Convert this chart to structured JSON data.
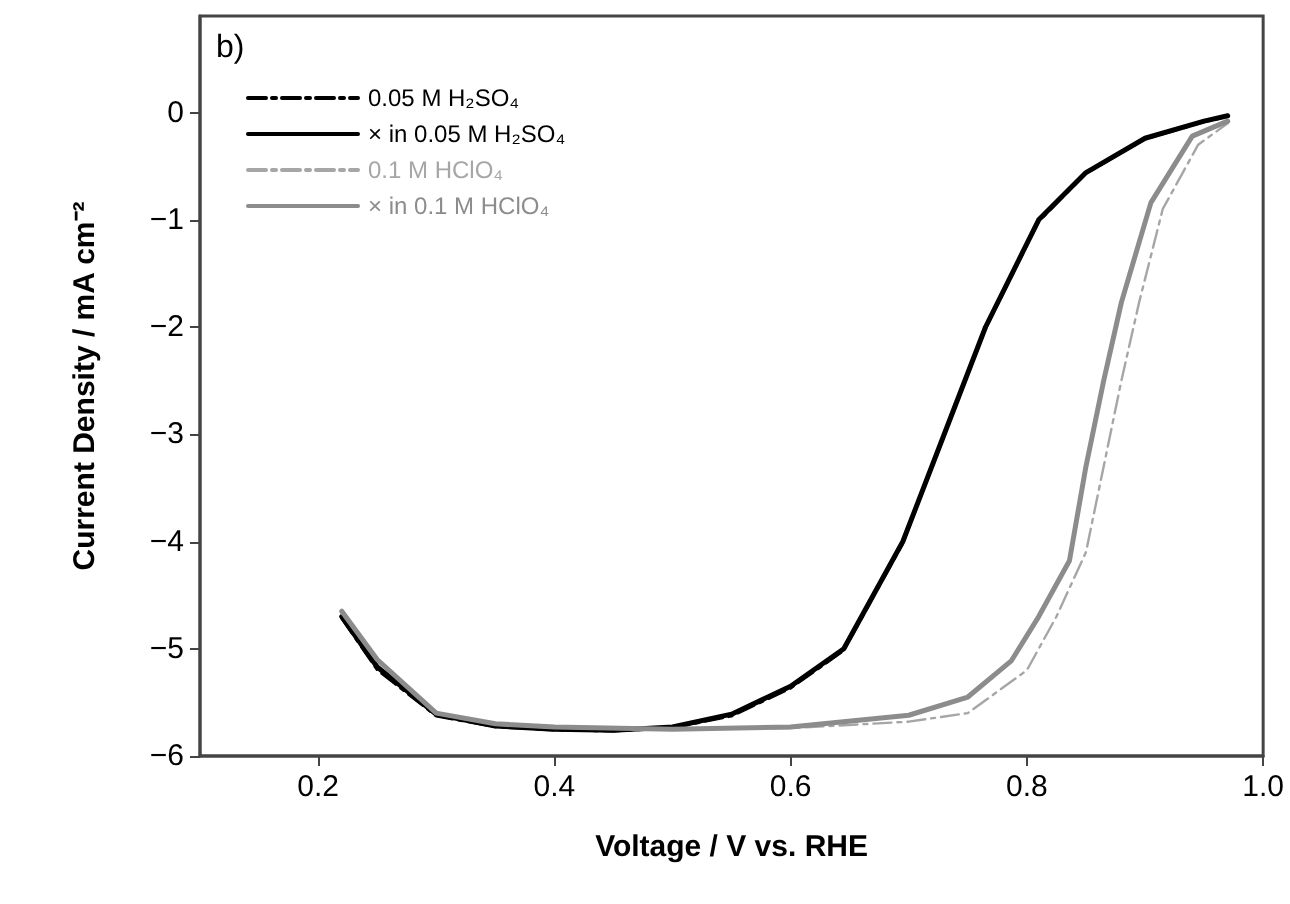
{
  "chart_data": {
    "type": "line",
    "xlabel": "Voltage / V vs. RHE",
    "ylabel": "Current Density / mA cm⁻²",
    "annotations": [
      "b)"
    ],
    "xlim": [
      0.1,
      1.0
    ],
    "xticks": [
      0.2,
      0.4,
      0.6,
      0.8,
      {
        "value": 1,
        "label": "1.0"
      }
    ],
    "ylim": [
      -6,
      0.9
    ],
    "yticks": [
      -6,
      -5,
      -4,
      -3,
      -2,
      -1,
      0
    ],
    "grid": false,
    "legend": "top left",
    "marker": "none",
    "series": [
      {
        "name": "0.05 M H₂SO₄",
        "color": "#000000",
        "line_style": "dashed",
        "x": [
          0.22,
          0.25,
          0.3,
          0.35,
          0.4,
          0.45,
          0.5,
          0.55,
          0.6,
          0.645,
          0.695,
          0.73,
          0.765,
          0.81,
          0.85,
          0.9,
          0.95,
          0.97
        ],
        "values": [
          -4.72,
          -5.2,
          -5.63,
          -5.73,
          -5.76,
          -5.77,
          -5.74,
          -5.63,
          -5.37,
          -5.02,
          -4.02,
          -3.02,
          -2.02,
          -1.02,
          -0.57,
          -0.25,
          -0.09,
          -0.04
        ]
      },
      {
        "name": "× in 0.05 M H₂SO₄",
        "color": "#000000",
        "line_style": "solid",
        "x": [
          0.22,
          0.25,
          0.3,
          0.35,
          0.4,
          0.45,
          0.5,
          0.55,
          0.6,
          0.645,
          0.695,
          0.73,
          0.765,
          0.81,
          0.85,
          0.9,
          0.95,
          0.97
        ],
        "values": [
          -4.7,
          -5.17,
          -5.61,
          -5.72,
          -5.75,
          -5.76,
          -5.73,
          -5.61,
          -5.35,
          -5.0,
          -4.0,
          -3.0,
          -2.0,
          -1.0,
          -0.56,
          -0.24,
          -0.08,
          -0.03
        ]
      },
      {
        "name": "0.1 M HClO₄",
        "color": "#a6a6a6",
        "line_style": "dashed",
        "x": [
          0.22,
          0.25,
          0.3,
          0.35,
          0.4,
          0.5,
          0.6,
          0.7,
          0.75,
          0.8,
          0.825,
          0.85,
          0.865,
          0.88,
          0.895,
          0.915,
          0.945,
          0.97
        ],
        "values": [
          -4.65,
          -5.1,
          -5.6,
          -5.7,
          -5.73,
          -5.75,
          -5.74,
          -5.68,
          -5.6,
          -5.2,
          -4.7,
          -4.1,
          -3.3,
          -2.5,
          -1.77,
          -0.9,
          -0.3,
          -0.1
        ]
      },
      {
        "name": "× in 0.1 M HClO₄",
        "color": "#8c8c8c",
        "line_style": "solid",
        "x": [
          0.22,
          0.25,
          0.3,
          0.35,
          0.4,
          0.5,
          0.6,
          0.7,
          0.75,
          0.787,
          0.81,
          0.836,
          0.85,
          0.865,
          0.88,
          0.905,
          0.94,
          0.97
        ],
        "values": [
          -4.65,
          -5.1,
          -5.6,
          -5.7,
          -5.73,
          -5.75,
          -5.73,
          -5.62,
          -5.45,
          -5.11,
          -4.7,
          -4.18,
          -3.3,
          -2.5,
          -1.77,
          -0.84,
          -0.22,
          -0.08
        ]
      }
    ]
  }
}
